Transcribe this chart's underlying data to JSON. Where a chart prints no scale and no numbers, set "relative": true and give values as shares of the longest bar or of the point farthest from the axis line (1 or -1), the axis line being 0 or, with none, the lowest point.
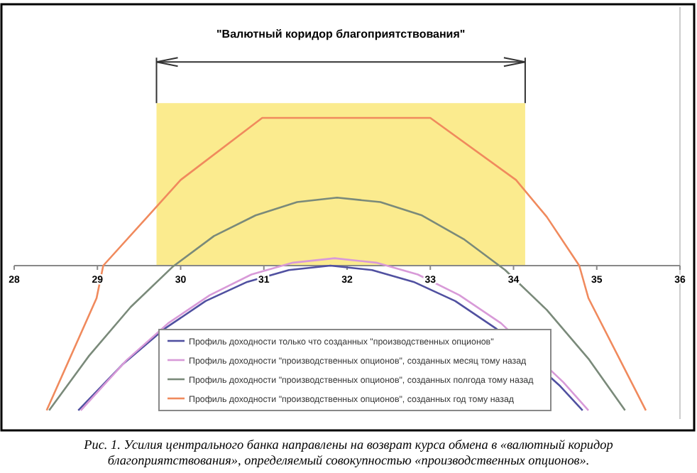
{
  "chart_data": {
    "type": "line",
    "relative": true,
    "xlim": [
      28,
      36
    ],
    "xticks": [
      28,
      29,
      30,
      31,
      32,
      33,
      34,
      35,
      36
    ],
    "tick_labels": "x",
    "grid": false,
    "legend": "bottom",
    "marker": "none",
    "line_style": "solid",
    "title": "\"Валютный коридор благоприятствования\"",
    "bands": [
      {
        "axis": "x",
        "from": 29.71,
        "to": 34.14,
        "color": "#fbeb8e"
      }
    ],
    "series": [
      {
        "name": "Профиль доходности только что созданных \"производственных опционов\"",
        "color": "#5050a0",
        "x": [
          28.77,
          29.3,
          29.8,
          30.3,
          30.8,
          31.3,
          31.8,
          32.3,
          32.8,
          33.3,
          33.8,
          34.55,
          34.83
        ],
        "values": [
          -0.98,
          -0.67,
          -0.43,
          -0.24,
          -0.11,
          -0.03,
          0,
          -0.03,
          -0.11,
          -0.24,
          -0.43,
          -0.81,
          -0.98
        ]
      },
      {
        "name": "Профиль доходности \"производственных опционов\", созданных месяц тому назад",
        "color": "#d89ad8",
        "x": [
          28.8,
          29.35,
          29.85,
          30.35,
          30.85,
          31.35,
          31.85,
          32.35,
          32.85,
          33.35,
          33.85,
          34.6,
          34.9
        ],
        "values": [
          -0.98,
          -0.64,
          -0.39,
          -0.2,
          -0.06,
          0.02,
          0.05,
          0.02,
          -0.06,
          -0.2,
          -0.39,
          -0.79,
          -0.98
        ]
      },
      {
        "name": "Профиль доходности \"производственных опционов\", созданных полгода тому назад",
        "color": "#7a8a7a",
        "x": [
          28.42,
          28.9,
          29.4,
          29.9,
          30.4,
          30.9,
          31.4,
          31.88,
          32.4,
          32.9,
          33.4,
          33.9,
          34.4,
          34.9,
          35.34
        ],
        "values": [
          -0.98,
          -0.61,
          -0.28,
          -0.01,
          0.2,
          0.34,
          0.43,
          0.46,
          0.43,
          0.34,
          0.18,
          -0.03,
          -0.3,
          -0.63,
          -0.98
        ]
      },
      {
        "name": "Профиль доходности \"производственных опционов\", созданных год тому назад",
        "color": "#f08a5d",
        "x": [
          28.39,
          28.99,
          29.07,
          29.6,
          30.0,
          30.98,
          33.0,
          34.03,
          34.4,
          34.79,
          34.9,
          35.59
        ],
        "values": [
          -0.98,
          -0.22,
          0,
          0.33,
          0.58,
          1,
          1,
          0.58,
          0.33,
          0,
          -0.22,
          -0.98
        ]
      }
    ],
    "annotations": [
      "Рис. 1. Усилия центрального банка направлены на возврат курса обмена в «валютный коридор благоприятствования», определяемый совокупностью «производственных опционов»."
    ]
  }
}
